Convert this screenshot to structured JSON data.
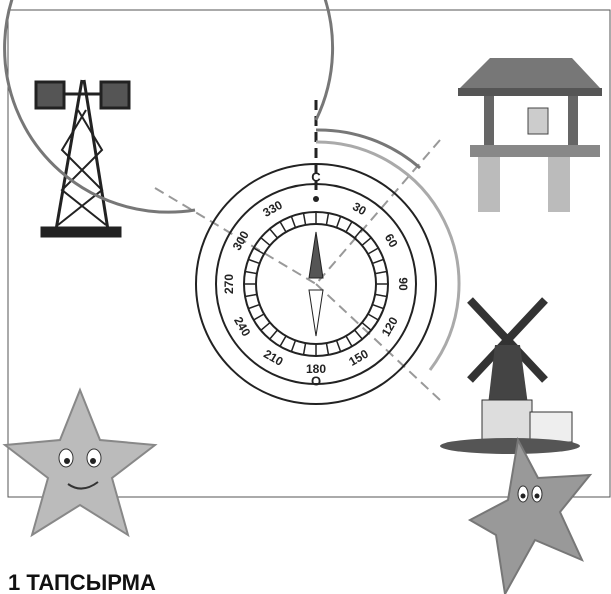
{
  "compass": {
    "north": "С",
    "south": "О",
    "degrees": [
      30,
      60,
      90,
      120,
      150,
      180,
      210,
      240,
      270,
      300,
      330
    ]
  },
  "task": {
    "title": "1 ТАПСЫРМА"
  }
}
